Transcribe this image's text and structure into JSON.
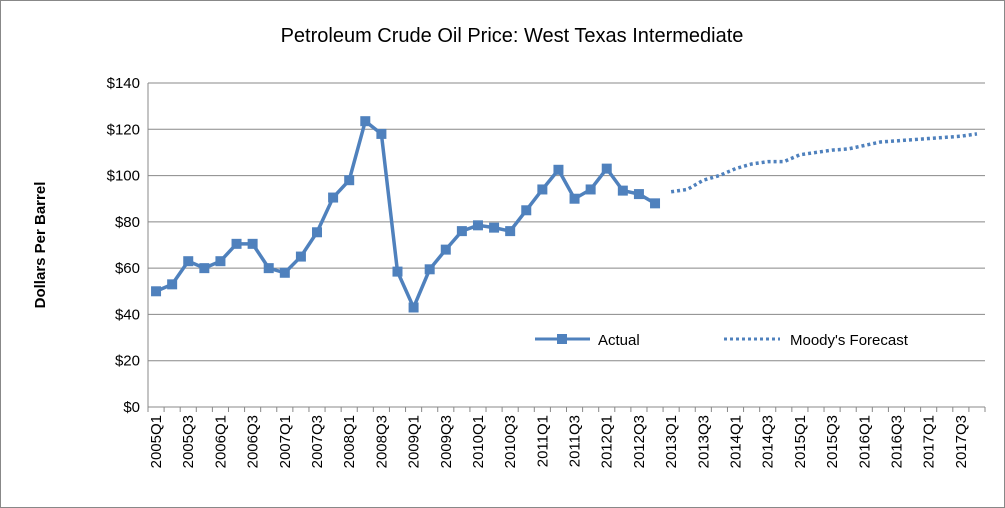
{
  "chart_data": {
    "type": "line",
    "title": "Petroleum Crude Oil Price: West Texas Intermediate",
    "y_label": "Dollars Per Barrel",
    "categories": [
      "2005Q1",
      null,
      "2005Q3",
      null,
      "2006Q1",
      null,
      "2006Q3",
      null,
      "2007Q1",
      null,
      "2007Q3",
      null,
      "2008Q1",
      null,
      "2008Q3",
      null,
      "2009Q1",
      null,
      "2009Q3",
      null,
      "2010Q1",
      null,
      "2010Q3",
      null,
      "2011Q1",
      null,
      "2011Q3",
      null,
      "2012Q1",
      null,
      "2012Q3",
      null,
      "2013Q1",
      null,
      "2013Q3",
      null,
      "2014Q1",
      null,
      "2014Q3",
      null,
      "2015Q1",
      null,
      "2015Q3",
      null,
      "2016Q1",
      null,
      "2016Q3",
      null,
      "2017Q1",
      null,
      "2017Q3",
      null
    ],
    "series": [
      {
        "name": "Actual",
        "color": "#4f81bd",
        "style": "solid",
        "markers": true,
        "values": [
          50,
          53,
          63,
          60,
          63,
          70.5,
          70.5,
          60,
          58,
          65,
          75.5,
          90.5,
          98,
          123.5,
          118,
          58.5,
          43,
          59.5,
          68,
          76,
          78.5,
          77.5,
          76,
          85,
          94,
          102.5,
          90,
          94,
          103,
          93.5,
          92,
          88,
          null,
          null,
          null,
          null,
          null,
          null,
          null,
          null,
          null,
          null,
          null,
          null,
          null,
          null,
          null,
          null,
          null,
          null,
          null,
          null
        ]
      },
      {
        "name": "Moody's Forecast",
        "color": "#4f81bd",
        "style": "dotted",
        "markers": false,
        "values": [
          null,
          null,
          null,
          null,
          null,
          null,
          null,
          null,
          null,
          null,
          null,
          null,
          null,
          null,
          null,
          null,
          null,
          null,
          null,
          null,
          null,
          null,
          null,
          null,
          null,
          null,
          null,
          null,
          null,
          null,
          null,
          null,
          93,
          94,
          98,
          100,
          103,
          105,
          106,
          106,
          109,
          110,
          111,
          111.5,
          113,
          114.5,
          115,
          115.5,
          116,
          116.5,
          117,
          118
        ]
      }
    ],
    "ylim": [
      0,
      140
    ],
    "yticks": [
      {
        "value": 0,
        "label": "$0"
      },
      {
        "value": 20,
        "label": "$20"
      },
      {
        "value": 40,
        "label": "$40"
      },
      {
        "value": 60,
        "label": "$60"
      },
      {
        "value": 80,
        "label": "$80"
      },
      {
        "value": 100,
        "label": "$100"
      },
      {
        "value": 120,
        "label": "$120"
      },
      {
        "value": 140,
        "label": "$140"
      }
    ],
    "grid": true,
    "legend": "inside-bottom-right"
  }
}
